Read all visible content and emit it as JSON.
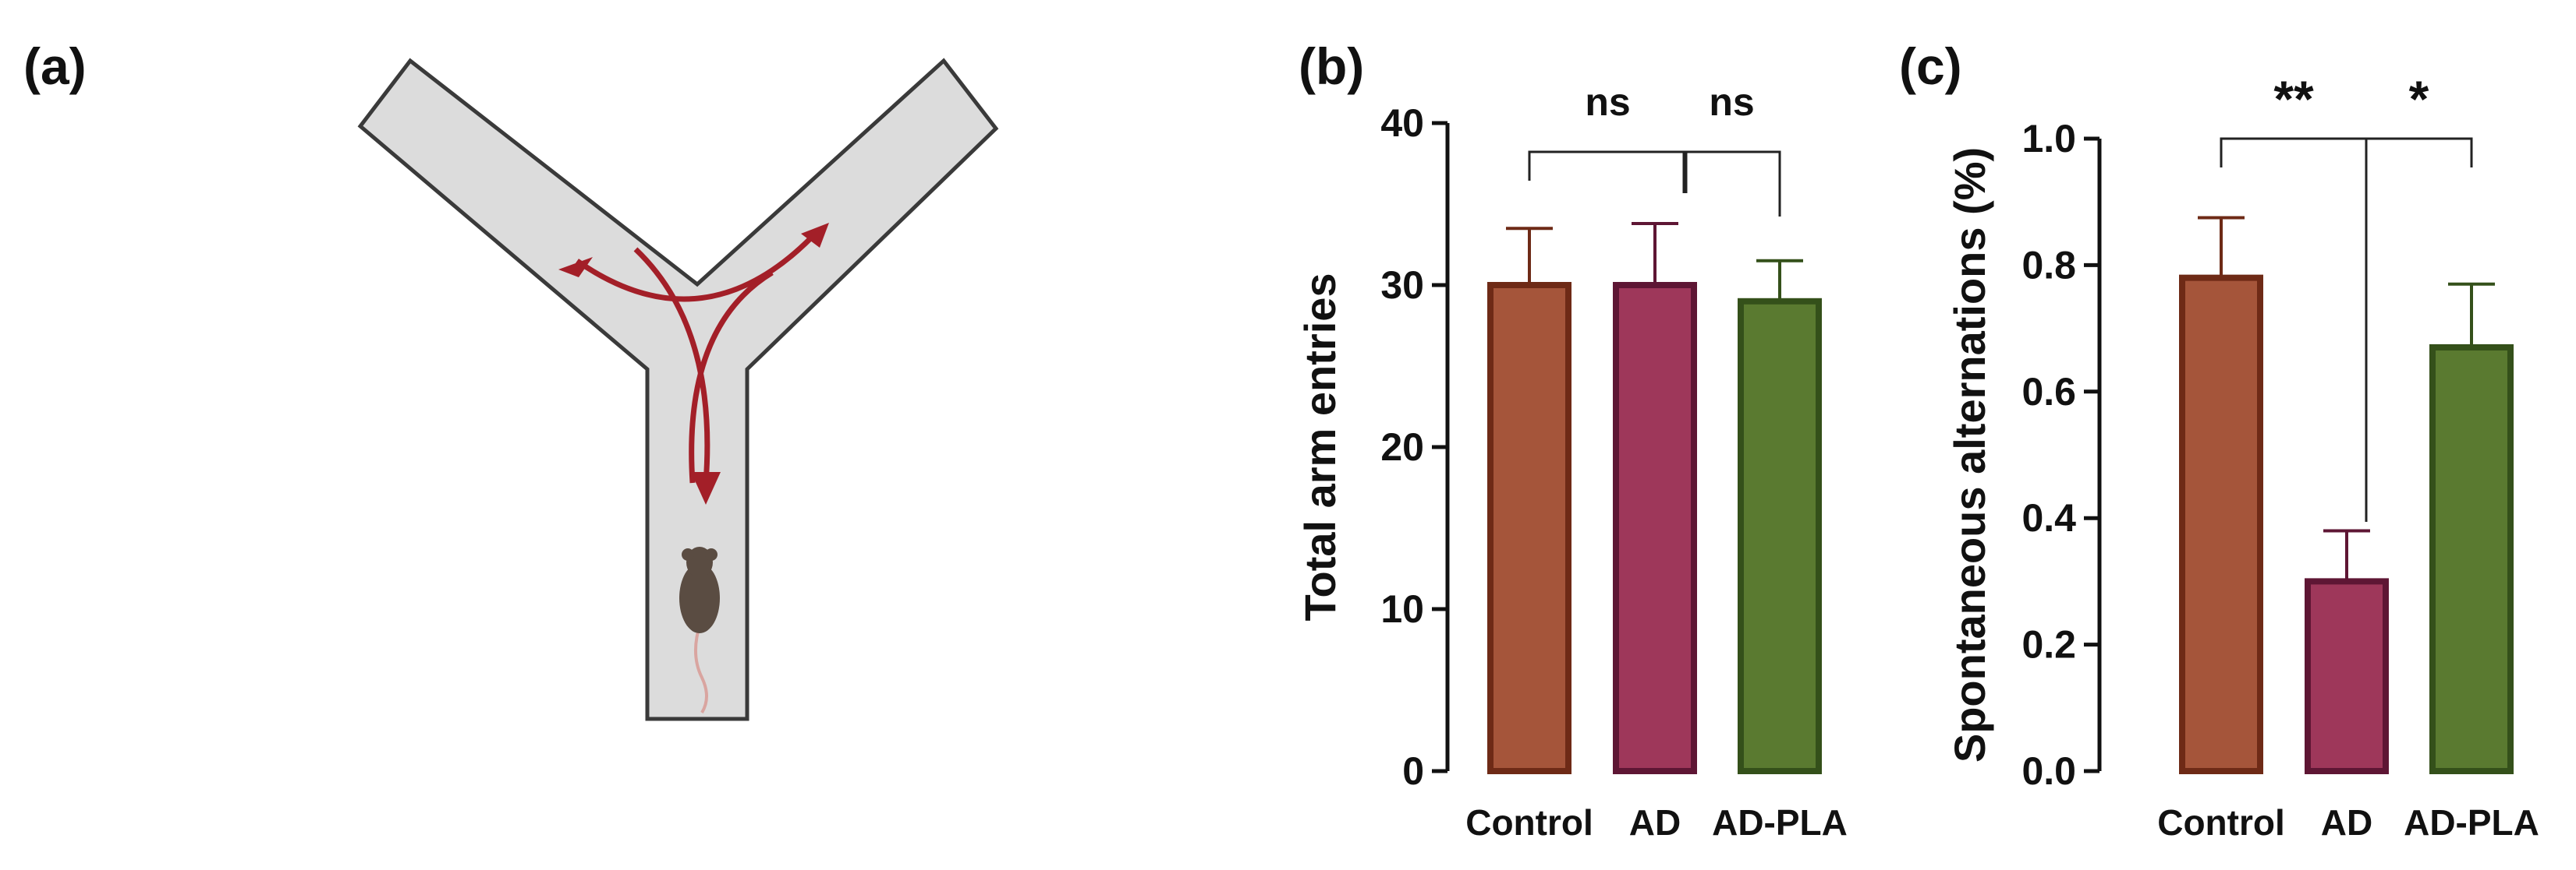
{
  "panels": {
    "a": "(a)",
    "b": "(b)",
    "c": "(c)"
  },
  "colors": {
    "maze_fill": "#dcdcdc",
    "maze_stroke": "#3a3a3a",
    "arrow": "#a31f28",
    "mouse": "#5a4c42",
    "tail": "#d9a5a0"
  },
  "chart_data": [
    {
      "type": "bar",
      "title": "",
      "xlabel": "",
      "ylabel": "Total arm entries",
      "ylim": [
        0,
        40
      ],
      "yticks": [
        0,
        10,
        20,
        30,
        40
      ],
      "ytick_labels": [
        "0",
        "10",
        "20",
        "30",
        "40"
      ],
      "categories": [
        "Control",
        "AD",
        "AD-PLA"
      ],
      "values": [
        30,
        30,
        29
      ],
      "errors": [
        3.5,
        3.8,
        2.5
      ],
      "fill_colors": [
        "#a5553a",
        "#9e375a",
        "#5a7a30"
      ],
      "edge_colors": [
        "#6e2a16",
        "#5e1634",
        "#34501a"
      ],
      "significance": [
        {
          "from": 0,
          "to": 1,
          "label": "ns"
        },
        {
          "from": 1,
          "to": 2,
          "label": "ns"
        }
      ]
    },
    {
      "type": "bar",
      "title": "",
      "xlabel": "",
      "ylabel": "Spontaneous alternations (%)",
      "ylim": [
        0,
        1.0
      ],
      "yticks": [
        0,
        0.2,
        0.4,
        0.6,
        0.8,
        1.0
      ],
      "ytick_labels": [
        "0.0",
        "0.2",
        "0.4",
        "0.6",
        "0.8",
        "1.0"
      ],
      "categories": [
        "Control",
        "AD",
        "AD-PLA"
      ],
      "values": [
        0.78,
        0.3,
        0.67
      ],
      "errors": [
        0.095,
        0.08,
        0.1
      ],
      "fill_colors": [
        "#a5553a",
        "#9e375a",
        "#5a7a30"
      ],
      "edge_colors": [
        "#6e2a16",
        "#5e1634",
        "#34501a"
      ],
      "significance": [
        {
          "from": 0,
          "to": 1,
          "label": "**"
        },
        {
          "from": 1,
          "to": 2,
          "label": "*"
        }
      ]
    }
  ]
}
